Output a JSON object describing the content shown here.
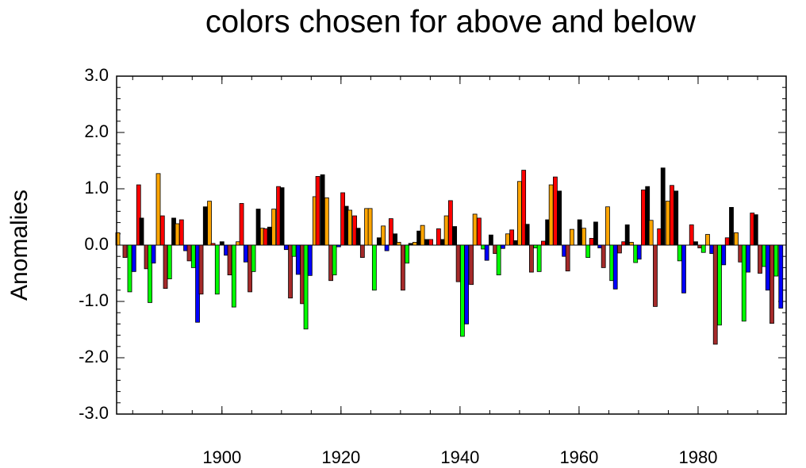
{
  "chart_data": {
    "type": "bar",
    "title": "colors chosen for above and below",
    "y_label": "Anomalies",
    "xlim": [
      1882.3,
      1994.8
    ],
    "xticks": [
      1900,
      1920,
      1940,
      1960,
      1980
    ],
    "ylim": [
      -3,
      3
    ],
    "yticks": [
      {
        "value": -3,
        "label": "-3.0"
      },
      {
        "value": -2,
        "label": "-2.0"
      },
      {
        "value": -1,
        "label": "-1.0"
      },
      {
        "value": 0,
        "label": "0.0"
      },
      {
        "value": 1,
        "label": "1.0"
      },
      {
        "value": 2,
        "label": "2.0"
      },
      {
        "value": 3,
        "label": "3.0"
      }
    ],
    "x": [
      1882.5,
      1883.7,
      1884.5,
      1885.2,
      1886.0,
      1886.5,
      1887.3,
      1887.9,
      1888.5,
      1889.3,
      1890.0,
      1890.5,
      1891.2,
      1891.9,
      1892.5,
      1893.2,
      1893.9,
      1894.5,
      1895.2,
      1895.9,
      1896.5,
      1897.2,
      1897.9,
      1898.5,
      1899.2,
      1900.0,
      1900.7,
      1901.3,
      1902.0,
      1902.7,
      1903.3,
      1904.0,
      1904.7,
      1905.3,
      1906.1,
      1906.8,
      1907.3,
      1908.0,
      1908.7,
      1909.5,
      1910.1,
      1910.8,
      1911.5,
      1912.1,
      1912.8,
      1913.5,
      1914.1,
      1914.8,
      1915.6,
      1916.1,
      1916.9,
      1917.6,
      1918.3,
      1918.9,
      1919.6,
      1920.3,
      1920.9,
      1921.5,
      1922.3,
      1922.9,
      1923.6,
      1924.3,
      1924.9,
      1925.6,
      1926.4,
      1927.1,
      1927.7,
      1928.4,
      1929.1,
      1929.7,
      1930.4,
      1931.1,
      1931.7,
      1932.4,
      1933.1,
      1933.7,
      1934.4,
      1935.1,
      1936.4,
      1937.1,
      1937.7,
      1938.4,
      1939.1,
      1939.7,
      1940.4,
      1941.1,
      1941.9,
      1942.5,
      1943.2,
      1943.9,
      1944.5,
      1945.2,
      1945.9,
      1946.5,
      1947.2,
      1948.0,
      1948.7,
      1949.3,
      1950.0,
      1950.7,
      1951.3,
      1952.0,
      1952.7,
      1953.3,
      1954.0,
      1954.7,
      1955.3,
      1956.0,
      1956.7,
      1957.5,
      1958.1,
      1958.8,
      1960.1,
      1960.8,
      1961.5,
      1962.1,
      1962.8,
      1963.5,
      1964.1,
      1964.8,
      1965.5,
      1966.1,
      1966.8,
      1967.5,
      1968.1,
      1968.8,
      1969.5,
      1970.1,
      1970.8,
      1971.5,
      1972.1,
      1972.8,
      1973.5,
      1974.1,
      1974.9,
      1975.6,
      1976.3,
      1976.9,
      1977.6,
      1978.9,
      1979.6,
      1980.3,
      1980.9,
      1981.6,
      1982.3,
      1982.9,
      1983.6,
      1984.3,
      1984.9,
      1985.6,
      1986.4,
      1987.1,
      1987.7,
      1988.4,
      1989.1,
      1989.7,
      1990.4,
      1991.1,
      1991.7,
      1992.4,
      1993.1,
      1993.9
    ],
    "values": [
      0.22,
      -0.22,
      -0.83,
      -0.47,
      1.07,
      0.48,
      -0.42,
      -1.02,
      -0.32,
      1.27,
      0.52,
      -0.77,
      -0.6,
      0.48,
      0.38,
      0.45,
      -0.1,
      -0.28,
      -0.4,
      -1.37,
      -0.87,
      0.68,
      0.78,
      0.03,
      -0.87,
      0.06,
      -0.18,
      -0.53,
      -1.1,
      0.06,
      0.74,
      -0.3,
      -0.83,
      -0.47,
      0.64,
      0.3,
      0.29,
      0.32,
      0.64,
      1.04,
      1.02,
      -0.08,
      -0.94,
      -0.2,
      -0.52,
      -1.04,
      -1.49,
      -0.54,
      0.86,
      1.22,
      1.25,
      0.84,
      -0.63,
      -0.53,
      -0.03,
      0.93,
      0.69,
      0.62,
      0.52,
      0.3,
      -0.22,
      0.65,
      0.65,
      -0.8,
      0.13,
      0.34,
      -0.1,
      0.47,
      0.2,
      0.05,
      -0.8,
      -0.32,
      0.03,
      0.05,
      0.25,
      0.35,
      0.1,
      0.1,
      0.29,
      0.1,
      0.52,
      0.79,
      0.33,
      -0.65,
      -1.62,
      -1.4,
      -0.7,
      0.55,
      0.48,
      -0.07,
      -0.27,
      0.18,
      -0.15,
      -0.53,
      -0.06,
      0.2,
      0.27,
      0.08,
      1.13,
      1.33,
      0.37,
      -0.48,
      -0.05,
      -0.47,
      0.07,
      0.45,
      1.07,
      1.21,
      0.96,
      -0.2,
      -0.46,
      0.28,
      0.45,
      0.3,
      -0.22,
      0.12,
      0.41,
      -0.05,
      -0.4,
      0.68,
      -0.63,
      -0.78,
      -0.14,
      0.06,
      0.36,
      0.05,
      -0.31,
      -0.25,
      0.98,
      1.04,
      0.44,
      -1.09,
      0.29,
      1.37,
      0.78,
      1.06,
      0.96,
      -0.28,
      -0.85,
      0.36,
      0.06,
      -0.05,
      -0.13,
      0.19,
      -0.15,
      -1.76,
      -1.42,
      -0.35,
      0.13,
      0.67,
      0.22,
      -0.3,
      -1.35,
      -0.48,
      0.57,
      0.54,
      -0.5,
      -0.38,
      -0.8,
      -1.39,
      -0.55,
      -1.12
    ],
    "colors": [
      "orange",
      "brown",
      "lime",
      "blue",
      "red",
      "black",
      "brown",
      "lime",
      "blue",
      "orange",
      "red",
      "brown",
      "lime",
      "black",
      "orange",
      "red",
      "blue",
      "brown",
      "lime",
      "blue",
      "brown",
      "black",
      "orange",
      "red",
      "lime",
      "black",
      "blue",
      "brown",
      "lime",
      "orange",
      "red",
      "blue",
      "brown",
      "lime",
      "black",
      "orange",
      "red",
      "black",
      "orange",
      "red",
      "black",
      "blue",
      "brown",
      "lime",
      "blue",
      "brown",
      "lime",
      "blue",
      "orange",
      "red",
      "black",
      "orange",
      "brown",
      "lime",
      "blue",
      "red",
      "black",
      "orange",
      "red",
      "black",
      "brown",
      "orange",
      "orange",
      "lime",
      "black",
      "orange",
      "blue",
      "red",
      "black",
      "orange",
      "brown",
      "lime",
      "black",
      "orange",
      "black",
      "orange",
      "black",
      "red",
      "red",
      "black",
      "orange",
      "red",
      "black",
      "brown",
      "lime",
      "blue",
      "brown",
      "orange",
      "red",
      "lime",
      "blue",
      "black",
      "brown",
      "lime",
      "blue",
      "orange",
      "red",
      "black",
      "orange",
      "red",
      "black",
      "brown",
      "lime",
      "lime",
      "red",
      "black",
      "orange",
      "red",
      "black",
      "blue",
      "brown",
      "orange",
      "black",
      "orange",
      "lime",
      "red",
      "black",
      "blue",
      "brown",
      "orange",
      "lime",
      "blue",
      "brown",
      "red",
      "black",
      "orange",
      "lime",
      "blue",
      "red",
      "black",
      "orange",
      "brown",
      "red",
      "black",
      "orange",
      "red",
      "black",
      "lime",
      "blue",
      "red",
      "black",
      "brown",
      "lime",
      "orange",
      "blue",
      "brown",
      "lime",
      "blue",
      "red",
      "black",
      "orange",
      "brown",
      "lime",
      "blue",
      "red",
      "black",
      "brown",
      "lime",
      "blue",
      "brown",
      "lime",
      "blue"
    ]
  }
}
